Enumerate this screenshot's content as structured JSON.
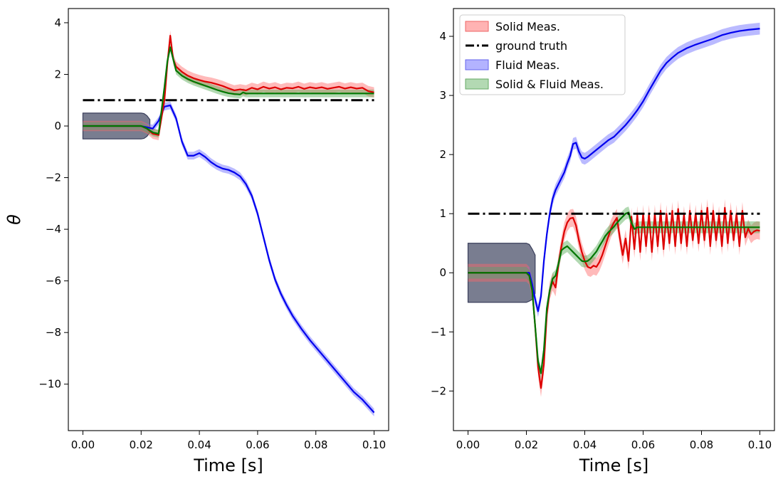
{
  "chart_data": [
    {
      "type": "line",
      "xlabel": "Time [s]",
      "ylabel": "θ",
      "xlim": [
        -0.005,
        0.105
      ],
      "ylim": [
        -11.8,
        4.55
      ],
      "xticks": [
        0.0,
        0.02,
        0.04,
        0.06,
        0.08,
        0.1
      ],
      "xtick_labels": [
        "0.00",
        "0.02",
        "0.04",
        "0.06",
        "0.08",
        "0.10"
      ],
      "yticks": [
        4,
        2,
        0,
        -2,
        -4,
        -6,
        -8,
        -10
      ],
      "ytick_labels": [
        "4",
        "2",
        "0",
        "−2",
        "−4",
        "−6",
        "−8",
        "−10"
      ],
      "legend": null,
      "bands": [
        {
          "kind": "prior",
          "color": "#2f3550",
          "x": [
            0,
            0.02,
            0.021,
            0.022,
            0.023
          ],
          "upper": [
            0.5,
            0.5,
            0.48,
            0.4,
            0.25
          ],
          "lower": [
            -0.5,
            -0.5,
            -0.48,
            -0.4,
            -0.25
          ]
        }
      ],
      "series": [
        {
          "color": "#0000ee",
          "x": [
            0,
            0.02,
            0.022,
            0.024,
            0.026,
            0.028,
            0.03,
            0.032,
            0.034,
            0.036,
            0.038,
            0.04,
            0.042,
            0.044,
            0.046,
            0.048,
            0.05,
            0.052,
            0.054,
            0.056,
            0.058,
            0.06,
            0.062,
            0.064,
            0.066,
            0.068,
            0.07,
            0.072,
            0.075,
            0.078,
            0.081,
            0.084,
            0.087,
            0.09,
            0.093,
            0.096,
            0.1
          ],
          "y": [
            0,
            0,
            -0.05,
            -0.1,
            0.2,
            0.75,
            0.8,
            0.3,
            -0.6,
            -1.15,
            -1.15,
            -1.05,
            -1.2,
            -1.4,
            -1.55,
            -1.65,
            -1.7,
            -1.8,
            -1.95,
            -2.25,
            -2.7,
            -3.4,
            -4.3,
            -5.2,
            -5.95,
            -6.5,
            -6.95,
            -7.35,
            -7.85,
            -8.3,
            -8.7,
            -9.1,
            -9.5,
            -9.9,
            -10.3,
            -10.6,
            -11.1
          ],
          "band": 0.15
        },
        {
          "color": "#dd0000",
          "x": [
            0,
            0.02,
            0.022,
            0.024,
            0.026,
            0.028,
            0.029,
            0.03,
            0.031,
            0.032,
            0.034,
            0.036,
            0.038,
            0.04,
            0.042,
            0.044,
            0.046,
            0.048,
            0.05,
            0.052,
            0.054,
            0.056,
            0.058,
            0.06,
            0.062,
            0.064,
            0.066,
            0.068,
            0.07,
            0.072,
            0.074,
            0.076,
            0.078,
            0.08,
            0.082,
            0.084,
            0.086,
            0.088,
            0.09,
            0.092,
            0.094,
            0.096,
            0.098,
            0.1
          ],
          "y": [
            0,
            0,
            -0.1,
            -0.3,
            -0.35,
            1.0,
            2.4,
            3.5,
            2.6,
            2.3,
            2.1,
            1.95,
            1.85,
            1.78,
            1.72,
            1.68,
            1.62,
            1.55,
            1.46,
            1.38,
            1.42,
            1.38,
            1.48,
            1.42,
            1.52,
            1.45,
            1.5,
            1.42,
            1.48,
            1.46,
            1.52,
            1.44,
            1.5,
            1.46,
            1.5,
            1.44,
            1.48,
            1.52,
            1.45,
            1.5,
            1.45,
            1.48,
            1.35,
            1.3
          ],
          "band": 0.2
        },
        {
          "color": "#007700",
          "x": [
            0,
            0.02,
            0.022,
            0.024,
            0.026,
            0.028,
            0.029,
            0.03,
            0.031,
            0.032,
            0.034,
            0.036,
            0.038,
            0.04,
            0.042,
            0.044,
            0.046,
            0.048,
            0.05,
            0.052,
            0.054,
            0.055,
            0.056,
            0.058,
            0.06,
            0.07,
            0.08,
            0.09,
            0.1
          ],
          "y": [
            0,
            0,
            -0.1,
            -0.25,
            -0.3,
            1.5,
            2.5,
            3.05,
            2.6,
            2.15,
            1.95,
            1.82,
            1.72,
            1.64,
            1.56,
            1.48,
            1.4,
            1.33,
            1.27,
            1.24,
            1.22,
            1.3,
            1.26,
            1.26,
            1.26,
            1.26,
            1.26,
            1.26,
            1.26
          ],
          "band": 0.15
        },
        {
          "color": "#000000",
          "dash": "dashdot",
          "x": [
            0,
            0.1
          ],
          "y": [
            1,
            1
          ],
          "band": 0
        }
      ]
    },
    {
      "type": "line",
      "xlabel": "Time [s]",
      "ylabel": "",
      "xlim": [
        -0.005,
        0.105
      ],
      "ylim": [
        -2.67,
        4.47
      ],
      "xticks": [
        0.0,
        0.02,
        0.04,
        0.06,
        0.08,
        0.1
      ],
      "xtick_labels": [
        "0.00",
        "0.02",
        "0.04",
        "0.06",
        "0.08",
        "0.10"
      ],
      "yticks": [
        4,
        3,
        2,
        1,
        0,
        -1,
        -2
      ],
      "ytick_labels": [
        "4",
        "3",
        "2",
        "1",
        "0",
        "−1",
        "−2"
      ],
      "legend": {
        "location": "upper-left",
        "entries": [
          {
            "label": "Solid Meas.",
            "kind": "patch",
            "color": "#ff9999"
          },
          {
            "label": "ground truth",
            "kind": "dashdot",
            "color": "#000000"
          },
          {
            "label": "Fluid Meas.",
            "kind": "patch",
            "color": "#9999ff"
          },
          {
            "label": "Solid & Fluid Meas.",
            "kind": "patch",
            "color": "#99cc99"
          }
        ]
      },
      "bands": [
        {
          "kind": "prior",
          "color": "#2f3550",
          "x": [
            0,
            0.02,
            0.021,
            0.022,
            0.023
          ],
          "upper": [
            0.5,
            0.5,
            0.48,
            0.4,
            0.3
          ],
          "lower": [
            -0.5,
            -0.5,
            -0.48,
            -0.45,
            -0.35
          ]
        }
      ],
      "series": [
        {
          "color": "#0000ee",
          "x": [
            0,
            0.02,
            0.021,
            0.022,
            0.023,
            0.024,
            0.025,
            0.026,
            0.027,
            0.028,
            0.029,
            0.03,
            0.031,
            0.032,
            0.033,
            0.034,
            0.035,
            0.036,
            0.037,
            0.038,
            0.039,
            0.04,
            0.041,
            0.042,
            0.044,
            0.046,
            0.048,
            0.05,
            0.052,
            0.054,
            0.056,
            0.058,
            0.06,
            0.062,
            0.064,
            0.066,
            0.068,
            0.07,
            0.072,
            0.075,
            0.078,
            0.081,
            0.084,
            0.087,
            0.09,
            0.093,
            0.096,
            0.1
          ],
          "y": [
            0,
            0,
            0,
            -0.2,
            -0.45,
            -0.65,
            -0.4,
            0.2,
            0.65,
            1.0,
            1.25,
            1.4,
            1.5,
            1.6,
            1.7,
            1.85,
            1.98,
            2.18,
            2.2,
            2.05,
            1.95,
            1.93,
            1.96,
            2.0,
            2.08,
            2.16,
            2.24,
            2.3,
            2.4,
            2.5,
            2.62,
            2.75,
            2.9,
            3.08,
            3.25,
            3.42,
            3.55,
            3.64,
            3.72,
            3.8,
            3.86,
            3.91,
            3.96,
            4.02,
            4.06,
            4.09,
            4.11,
            4.13
          ],
          "band": 0.1
        },
        {
          "color": "#dd0000",
          "x": [
            0,
            0.02,
            0.021,
            0.022,
            0.023,
            0.024,
            0.025,
            0.026,
            0.027,
            0.028,
            0.029,
            0.03,
            0.031,
            0.032,
            0.033,
            0.034,
            0.035,
            0.036,
            0.037,
            0.038,
            0.039,
            0.04,
            0.041,
            0.042,
            0.043,
            0.044,
            0.045,
            0.046,
            0.047,
            0.048,
            0.049,
            0.05,
            0.051,
            0.052,
            0.053,
            0.054,
            0.055,
            0.056,
            0.057,
            0.058,
            0.059,
            0.06,
            0.061,
            0.062,
            0.063,
            0.064,
            0.065,
            0.066,
            0.067,
            0.068,
            0.069,
            0.07,
            0.071,
            0.072,
            0.073,
            0.074,
            0.075,
            0.076,
            0.077,
            0.078,
            0.079,
            0.08,
            0.081,
            0.082,
            0.083,
            0.084,
            0.085,
            0.086,
            0.087,
            0.088,
            0.089,
            0.09,
            0.091,
            0.092,
            0.093,
            0.094,
            0.095,
            0.096,
            0.097,
            0.098,
            0.099,
            0.1
          ],
          "y": [
            0,
            0,
            -0.05,
            -0.3,
            -0.9,
            -1.6,
            -1.95,
            -1.55,
            -0.7,
            -0.3,
            -0.15,
            -0.25,
            0.15,
            0.45,
            0.7,
            0.85,
            0.92,
            0.93,
            0.8,
            0.55,
            0.35,
            0.2,
            0.1,
            0.08,
            0.12,
            0.1,
            0.18,
            0.3,
            0.45,
            0.6,
            0.75,
            0.85,
            0.93,
            0.6,
            0.3,
            0.58,
            0.2,
            0.95,
            0.4,
            0.98,
            0.35,
            1.0,
            0.45,
            1.0,
            0.35,
            1.0,
            0.45,
            1.05,
            0.4,
            1.0,
            0.5,
            1.05,
            0.45,
            1.08,
            0.5,
            0.98,
            0.45,
            1.05,
            0.55,
            1.0,
            0.5,
            1.05,
            0.55,
            1.1,
            0.45,
            1.05,
            0.55,
            0.98,
            0.45,
            1.1,
            0.5,
            1.05,
            0.55,
            1.0,
            0.45,
            1.05,
            0.6,
            0.75,
            0.65,
            0.7,
            0.72,
            0.71
          ],
          "band": 0.15
        },
        {
          "color": "#007700",
          "x": [
            0,
            0.02,
            0.021,
            0.022,
            0.023,
            0.024,
            0.025,
            0.026,
            0.027,
            0.028,
            0.029,
            0.03,
            0.031,
            0.032,
            0.033,
            0.034,
            0.035,
            0.036,
            0.037,
            0.038,
            0.039,
            0.04,
            0.041,
            0.042,
            0.043,
            0.044,
            0.045,
            0.046,
            0.047,
            0.048,
            0.049,
            0.05,
            0.051,
            0.052,
            0.053,
            0.054,
            0.055,
            0.056,
            0.057,
            0.058,
            0.06,
            0.07,
            0.08,
            0.09,
            0.1
          ],
          "y": [
            0,
            0,
            -0.05,
            -0.3,
            -0.9,
            -1.5,
            -1.7,
            -1.3,
            -0.6,
            -0.3,
            -0.1,
            -0.05,
            0.15,
            0.38,
            0.42,
            0.45,
            0.4,
            0.35,
            0.3,
            0.25,
            0.2,
            0.19,
            0.2,
            0.24,
            0.3,
            0.36,
            0.45,
            0.53,
            0.62,
            0.68,
            0.73,
            0.78,
            0.84,
            0.9,
            0.95,
            1.0,
            1.02,
            0.85,
            0.74,
            0.77,
            0.77,
            0.77,
            0.77,
            0.77,
            0.77
          ],
          "band": 0.1
        },
        {
          "color": "#000000",
          "dash": "dashdot",
          "x": [
            0,
            0.1
          ],
          "y": [
            1,
            1
          ],
          "band": 0
        }
      ]
    }
  ]
}
